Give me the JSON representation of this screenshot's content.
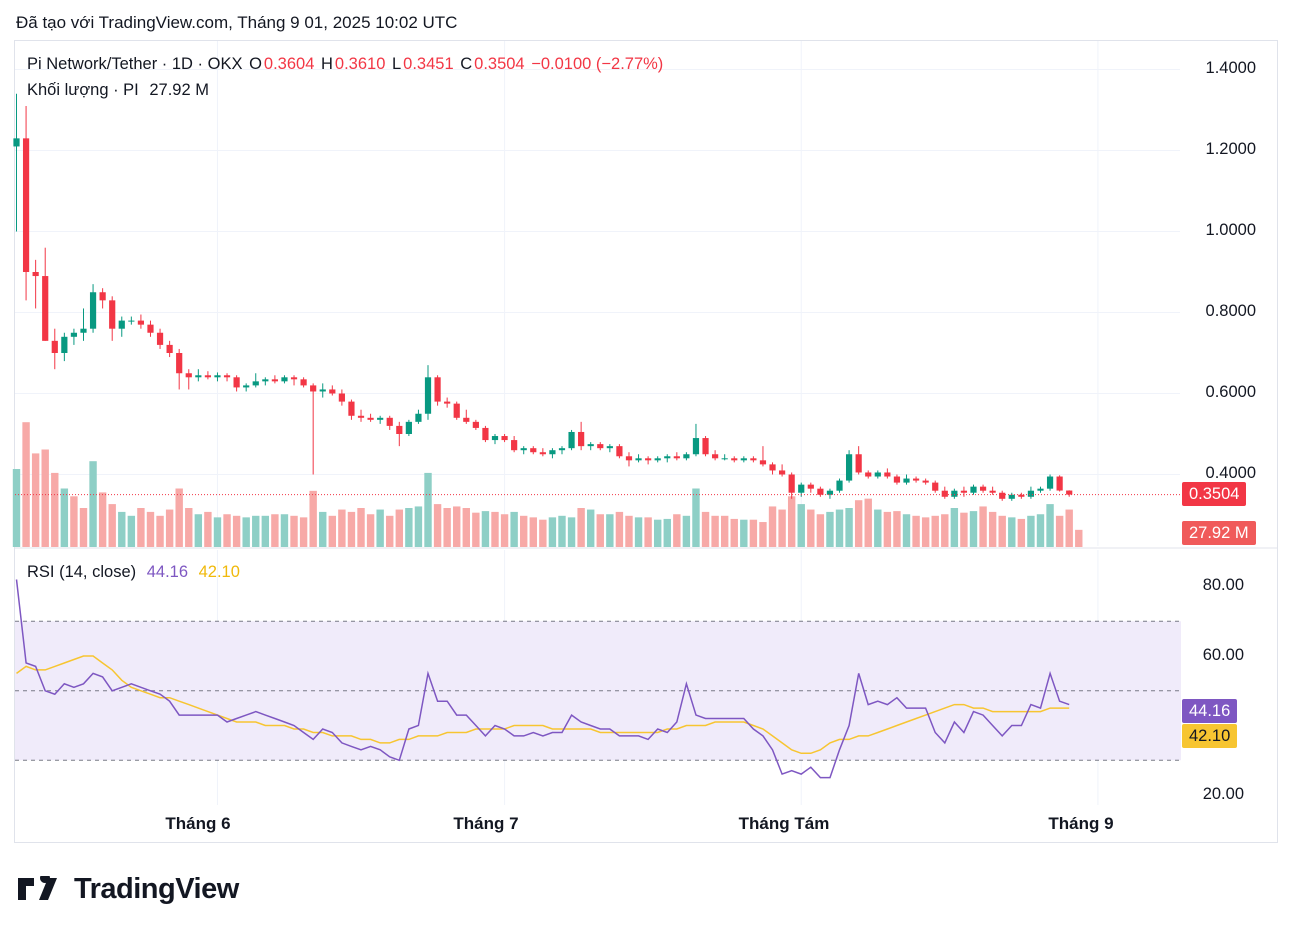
{
  "header": {
    "created_text": "Đã tạo với TradingView.com, Tháng 9 01, 2025 10:02 UTC"
  },
  "legend": {
    "symbol": "Pi Network/Tether · 1D · OKX",
    "o_label": "O",
    "o_value": "0.3604",
    "h_label": "H",
    "h_value": "0.3610",
    "l_label": "L",
    "l_value": "0.3451",
    "c_label": "C",
    "c_value": "0.3504",
    "change": "−0.0100 (−2.77%)",
    "volume_label": "Khối lượng · PI",
    "volume_value": "27.92 M"
  },
  "rsi_legend": {
    "label": "RSI (14, close)",
    "rsi_value": "44.16",
    "ma_value": "42.10"
  },
  "price_axis": [
    "1.4000",
    "1.2000",
    "1.0000",
    "0.8000",
    "0.6000",
    "0.4000"
  ],
  "rsi_axis": [
    "80.00",
    "60.00",
    "20.00"
  ],
  "x_axis": [
    {
      "label": "Tháng 6",
      "idx": 21
    },
    {
      "label": "Tháng 7",
      "idx": 51
    },
    {
      "label": "Tháng Tám",
      "idx": 82
    },
    {
      "label": "Tháng 9",
      "idx": 113
    }
  ],
  "badges": {
    "price": "0.3504",
    "volume": "27.92 M",
    "rsi": "44.16",
    "rsi_ma": "42.10"
  },
  "brand": {
    "name": "TradingView"
  },
  "colors": {
    "up": "#089981",
    "down": "#f23645",
    "vol_up": "#8ecfc6",
    "vol_down": "#f7a9a7",
    "rsi": "#7e57c2",
    "rsi_ma": "#f7c531",
    "rsi_band": "#f0ebfa"
  },
  "chart_data": {
    "type": "candlestick",
    "price_range": [
      0.28,
      1.45
    ],
    "rsi_range": [
      17,
      86
    ],
    "rsi_bands": [
      30,
      50,
      70
    ],
    "candles": [
      {
        "o": 1.21,
        "h": 1.34,
        "l": 1.0,
        "c": 1.23
      },
      {
        "o": 1.23,
        "h": 1.31,
        "l": 0.83,
        "c": 0.9
      },
      {
        "o": 0.9,
        "h": 0.93,
        "l": 0.81,
        "c": 0.89
      },
      {
        "o": 0.89,
        "h": 0.96,
        "l": 0.73,
        "c": 0.73
      },
      {
        "o": 0.73,
        "h": 0.76,
        "l": 0.66,
        "c": 0.7
      },
      {
        "o": 0.7,
        "h": 0.75,
        "l": 0.68,
        "c": 0.74
      },
      {
        "o": 0.74,
        "h": 0.76,
        "l": 0.72,
        "c": 0.75
      },
      {
        "o": 0.75,
        "h": 0.81,
        "l": 0.73,
        "c": 0.76
      },
      {
        "o": 0.76,
        "h": 0.87,
        "l": 0.75,
        "c": 0.85
      },
      {
        "o": 0.85,
        "h": 0.86,
        "l": 0.81,
        "c": 0.83
      },
      {
        "o": 0.83,
        "h": 0.84,
        "l": 0.73,
        "c": 0.76
      },
      {
        "o": 0.76,
        "h": 0.79,
        "l": 0.74,
        "c": 0.78
      },
      {
        "o": 0.78,
        "h": 0.79,
        "l": 0.77,
        "c": 0.78
      },
      {
        "o": 0.78,
        "h": 0.795,
        "l": 0.76,
        "c": 0.77
      },
      {
        "o": 0.77,
        "h": 0.78,
        "l": 0.74,
        "c": 0.75
      },
      {
        "o": 0.75,
        "h": 0.76,
        "l": 0.71,
        "c": 0.72
      },
      {
        "o": 0.72,
        "h": 0.73,
        "l": 0.69,
        "c": 0.7
      },
      {
        "o": 0.7,
        "h": 0.71,
        "l": 0.61,
        "c": 0.65
      },
      {
        "o": 0.65,
        "h": 0.66,
        "l": 0.61,
        "c": 0.64
      },
      {
        "o": 0.64,
        "h": 0.66,
        "l": 0.63,
        "c": 0.645
      },
      {
        "o": 0.645,
        "h": 0.655,
        "l": 0.635,
        "c": 0.64
      },
      {
        "o": 0.64,
        "h": 0.652,
        "l": 0.63,
        "c": 0.645
      },
      {
        "o": 0.645,
        "h": 0.65,
        "l": 0.63,
        "c": 0.64
      },
      {
        "o": 0.64,
        "h": 0.645,
        "l": 0.605,
        "c": 0.615
      },
      {
        "o": 0.615,
        "h": 0.625,
        "l": 0.605,
        "c": 0.62
      },
      {
        "o": 0.62,
        "h": 0.65,
        "l": 0.615,
        "c": 0.63
      },
      {
        "o": 0.63,
        "h": 0.64,
        "l": 0.62,
        "c": 0.635
      },
      {
        "o": 0.635,
        "h": 0.645,
        "l": 0.625,
        "c": 0.63
      },
      {
        "o": 0.63,
        "h": 0.645,
        "l": 0.625,
        "c": 0.64
      },
      {
        "o": 0.64,
        "h": 0.645,
        "l": 0.62,
        "c": 0.635
      },
      {
        "o": 0.635,
        "h": 0.64,
        "l": 0.615,
        "c": 0.62
      },
      {
        "o": 0.62,
        "h": 0.625,
        "l": 0.4,
        "c": 0.605
      },
      {
        "o": 0.605,
        "h": 0.625,
        "l": 0.59,
        "c": 0.61
      },
      {
        "o": 0.61,
        "h": 0.62,
        "l": 0.595,
        "c": 0.6
      },
      {
        "o": 0.6,
        "h": 0.61,
        "l": 0.57,
        "c": 0.58
      },
      {
        "o": 0.58,
        "h": 0.585,
        "l": 0.535,
        "c": 0.545
      },
      {
        "o": 0.545,
        "h": 0.56,
        "l": 0.53,
        "c": 0.54
      },
      {
        "o": 0.54,
        "h": 0.55,
        "l": 0.53,
        "c": 0.535
      },
      {
        "o": 0.535,
        "h": 0.545,
        "l": 0.525,
        "c": 0.54
      },
      {
        "o": 0.54,
        "h": 0.545,
        "l": 0.51,
        "c": 0.52
      },
      {
        "o": 0.52,
        "h": 0.53,
        "l": 0.47,
        "c": 0.5
      },
      {
        "o": 0.5,
        "h": 0.535,
        "l": 0.495,
        "c": 0.53
      },
      {
        "o": 0.53,
        "h": 0.56,
        "l": 0.525,
        "c": 0.55
      },
      {
        "o": 0.55,
        "h": 0.67,
        "l": 0.535,
        "c": 0.64
      },
      {
        "o": 0.64,
        "h": 0.645,
        "l": 0.57,
        "c": 0.58
      },
      {
        "o": 0.58,
        "h": 0.59,
        "l": 0.565,
        "c": 0.575
      },
      {
        "o": 0.575,
        "h": 0.58,
        "l": 0.535,
        "c": 0.54
      },
      {
        "o": 0.54,
        "h": 0.56,
        "l": 0.525,
        "c": 0.53
      },
      {
        "o": 0.53,
        "h": 0.535,
        "l": 0.51,
        "c": 0.515
      },
      {
        "o": 0.515,
        "h": 0.52,
        "l": 0.48,
        "c": 0.485
      },
      {
        "o": 0.485,
        "h": 0.5,
        "l": 0.475,
        "c": 0.495
      },
      {
        "o": 0.495,
        "h": 0.5,
        "l": 0.48,
        "c": 0.485
      },
      {
        "o": 0.485,
        "h": 0.495,
        "l": 0.455,
        "c": 0.46
      },
      {
        "o": 0.46,
        "h": 0.47,
        "l": 0.45,
        "c": 0.465
      },
      {
        "o": 0.465,
        "h": 0.47,
        "l": 0.45,
        "c": 0.455
      },
      {
        "o": 0.455,
        "h": 0.465,
        "l": 0.445,
        "c": 0.45
      },
      {
        "o": 0.45,
        "h": 0.465,
        "l": 0.44,
        "c": 0.46
      },
      {
        "o": 0.46,
        "h": 0.47,
        "l": 0.45,
        "c": 0.465
      },
      {
        "o": 0.465,
        "h": 0.51,
        "l": 0.46,
        "c": 0.505
      },
      {
        "o": 0.505,
        "h": 0.53,
        "l": 0.46,
        "c": 0.47
      },
      {
        "o": 0.47,
        "h": 0.48,
        "l": 0.46,
        "c": 0.475
      },
      {
        "o": 0.475,
        "h": 0.48,
        "l": 0.46,
        "c": 0.465
      },
      {
        "o": 0.465,
        "h": 0.475,
        "l": 0.455,
        "c": 0.47
      },
      {
        "o": 0.47,
        "h": 0.475,
        "l": 0.44,
        "c": 0.445
      },
      {
        "o": 0.445,
        "h": 0.455,
        "l": 0.42,
        "c": 0.435
      },
      {
        "o": 0.435,
        "h": 0.45,
        "l": 0.43,
        "c": 0.44
      },
      {
        "o": 0.44,
        "h": 0.445,
        "l": 0.425,
        "c": 0.435
      },
      {
        "o": 0.435,
        "h": 0.445,
        "l": 0.43,
        "c": 0.44
      },
      {
        "o": 0.44,
        "h": 0.45,
        "l": 0.43,
        "c": 0.445
      },
      {
        "o": 0.445,
        "h": 0.455,
        "l": 0.435,
        "c": 0.44
      },
      {
        "o": 0.44,
        "h": 0.455,
        "l": 0.435,
        "c": 0.45
      },
      {
        "o": 0.45,
        "h": 0.525,
        "l": 0.445,
        "c": 0.49
      },
      {
        "o": 0.49,
        "h": 0.495,
        "l": 0.445,
        "c": 0.45
      },
      {
        "o": 0.45,
        "h": 0.46,
        "l": 0.435,
        "c": 0.44
      },
      {
        "o": 0.44,
        "h": 0.45,
        "l": 0.435,
        "c": 0.44
      },
      {
        "o": 0.44,
        "h": 0.445,
        "l": 0.43,
        "c": 0.435
      },
      {
        "o": 0.435,
        "h": 0.445,
        "l": 0.43,
        "c": 0.44
      },
      {
        "o": 0.44,
        "h": 0.445,
        "l": 0.43,
        "c": 0.435
      },
      {
        "o": 0.435,
        "h": 0.47,
        "l": 0.42,
        "c": 0.425
      },
      {
        "o": 0.425,
        "h": 0.43,
        "l": 0.4,
        "c": 0.41
      },
      {
        "o": 0.41,
        "h": 0.425,
        "l": 0.395,
        "c": 0.4
      },
      {
        "o": 0.4,
        "h": 0.405,
        "l": 0.34,
        "c": 0.355
      },
      {
        "o": 0.355,
        "h": 0.38,
        "l": 0.345,
        "c": 0.375
      },
      {
        "o": 0.375,
        "h": 0.38,
        "l": 0.355,
        "c": 0.365
      },
      {
        "o": 0.365,
        "h": 0.37,
        "l": 0.345,
        "c": 0.35
      },
      {
        "o": 0.35,
        "h": 0.365,
        "l": 0.34,
        "c": 0.36
      },
      {
        "o": 0.36,
        "h": 0.39,
        "l": 0.355,
        "c": 0.385
      },
      {
        "o": 0.385,
        "h": 0.46,
        "l": 0.38,
        "c": 0.45
      },
      {
        "o": 0.45,
        "h": 0.47,
        "l": 0.4,
        "c": 0.405
      },
      {
        "o": 0.405,
        "h": 0.41,
        "l": 0.39,
        "c": 0.395
      },
      {
        "o": 0.395,
        "h": 0.41,
        "l": 0.39,
        "c": 0.405
      },
      {
        "o": 0.405,
        "h": 0.415,
        "l": 0.39,
        "c": 0.395
      },
      {
        "o": 0.395,
        "h": 0.4,
        "l": 0.375,
        "c": 0.38
      },
      {
        "o": 0.38,
        "h": 0.4,
        "l": 0.375,
        "c": 0.39
      },
      {
        "o": 0.39,
        "h": 0.395,
        "l": 0.38,
        "c": 0.385
      },
      {
        "o": 0.385,
        "h": 0.39,
        "l": 0.375,
        "c": 0.38
      },
      {
        "o": 0.38,
        "h": 0.385,
        "l": 0.355,
        "c": 0.36
      },
      {
        "o": 0.36,
        "h": 0.37,
        "l": 0.34,
        "c": 0.345
      },
      {
        "o": 0.345,
        "h": 0.365,
        "l": 0.34,
        "c": 0.36
      },
      {
        "o": 0.36,
        "h": 0.37,
        "l": 0.345,
        "c": 0.355
      },
      {
        "o": 0.355,
        "h": 0.375,
        "l": 0.35,
        "c": 0.37
      },
      {
        "o": 0.37,
        "h": 0.375,
        "l": 0.355,
        "c": 0.36
      },
      {
        "o": 0.36,
        "h": 0.37,
        "l": 0.35,
        "c": 0.355
      },
      {
        "o": 0.355,
        "h": 0.36,
        "l": 0.335,
        "c": 0.34
      },
      {
        "o": 0.34,
        "h": 0.355,
        "l": 0.335,
        "c": 0.35
      },
      {
        "o": 0.35,
        "h": 0.355,
        "l": 0.34,
        "c": 0.345
      },
      {
        "o": 0.345,
        "h": 0.37,
        "l": 0.34,
        "c": 0.36
      },
      {
        "o": 0.36,
        "h": 0.37,
        "l": 0.355,
        "c": 0.365
      },
      {
        "o": 0.365,
        "h": 0.4,
        "l": 0.36,
        "c": 0.395
      },
      {
        "o": 0.395,
        "h": 0.398,
        "l": 0.358,
        "c": 0.3604
      },
      {
        "o": 0.3604,
        "h": 0.361,
        "l": 0.3451,
        "c": 0.3504
      }
    ],
    "volume": [
      100,
      160,
      120,
      125,
      95,
      75,
      65,
      50,
      110,
      70,
      55,
      45,
      40,
      50,
      45,
      40,
      48,
      75,
      50,
      42,
      45,
      38,
      42,
      40,
      38,
      40,
      40,
      42,
      42,
      40,
      38,
      72,
      45,
      40,
      48,
      45,
      50,
      42,
      48,
      40,
      48,
      50,
      52,
      95,
      55,
      50,
      52,
      50,
      44,
      46,
      45,
      42,
      45,
      40,
      38,
      35,
      38,
      40,
      38,
      50,
      48,
      42,
      42,
      45,
      40,
      38,
      38,
      35,
      36,
      42,
      40,
      75,
      45,
      40,
      40,
      36,
      35,
      35,
      32,
      52,
      48,
      65,
      55,
      48,
      42,
      45,
      48,
      50,
      60,
      62,
      48,
      45,
      46,
      42,
      40,
      38,
      40,
      42,
      50,
      44,
      46,
      52,
      45,
      40,
      38,
      36,
      40,
      42,
      55,
      40,
      48,
      22
    ],
    "volume_up": [
      1,
      0,
      0,
      0,
      0,
      1,
      0,
      0,
      1,
      0,
      0,
      1,
      1,
      0,
      0,
      0,
      0,
      0,
      0,
      1,
      0,
      1,
      0,
      0,
      1,
      1,
      1,
      0,
      1,
      0,
      0,
      0,
      1,
      0,
      0,
      0,
      0,
      0,
      1,
      0,
      0,
      1,
      1,
      1,
      0,
      0,
      0,
      0,
      0,
      1,
      0,
      0,
      1,
      0,
      0,
      0,
      1,
      1,
      1,
      0,
      1,
      0,
      1,
      0,
      0,
      1,
      0,
      1,
      1,
      0,
      1,
      1,
      0,
      0,
      0,
      0,
      1,
      0,
      0,
      0,
      0,
      0,
      1,
      0,
      0,
      1,
      1,
      1,
      0,
      0,
      1,
      0,
      0,
      1,
      0,
      0,
      0,
      0,
      1,
      0,
      1,
      0,
      0,
      0,
      1,
      0,
      1,
      1,
      1,
      0
    ],
    "rsi": [
      82,
      58,
      57,
      50,
      49,
      52,
      51,
      52,
      55,
      54,
      50,
      51,
      52,
      51,
      50,
      49,
      47,
      43,
      43,
      43,
      43,
      43,
      41,
      42,
      43,
      44,
      43,
      42,
      41,
      40,
      38,
      36,
      39,
      38,
      35,
      34,
      33,
      34,
      33,
      31,
      30,
      39,
      40,
      55,
      47,
      47,
      43,
      43,
      40,
      37,
      40,
      39,
      37,
      37,
      38,
      37,
      38,
      38,
      43,
      41,
      40,
      39,
      39,
      37,
      37,
      37,
      36,
      39,
      38,
      41,
      52,
      43,
      42,
      42,
      42,
      42,
      42,
      39,
      37,
      33,
      26,
      27,
      26,
      28,
      25,
      25,
      33,
      40,
      55,
      46,
      47,
      46,
      48,
      45,
      45,
      45,
      38,
      35,
      41,
      38,
      44,
      43,
      40,
      37,
      40,
      40,
      46,
      45,
      55,
      47,
      46
    ],
    "rsi_ma": [
      55,
      57,
      56,
      56,
      57,
      58,
      59,
      60,
      60,
      58,
      56,
      53,
      51,
      50,
      49,
      48,
      48,
      47,
      46,
      45,
      44,
      43,
      42,
      41,
      41,
      41,
      40,
      40,
      40,
      39,
      39,
      38,
      38,
      37,
      37,
      37,
      36,
      36,
      35,
      35,
      36,
      36,
      37,
      37,
      37,
      38,
      38,
      38,
      39,
      39,
      39,
      39,
      40,
      40,
      40,
      40,
      39,
      39,
      39,
      39,
      39,
      38,
      38,
      38,
      38,
      38,
      38,
      38,
      39,
      39,
      40,
      40,
      40,
      41,
      41,
      41,
      41,
      40,
      39,
      37,
      35,
      33,
      32,
      32,
      33,
      35,
      36,
      36,
      37,
      37,
      38,
      39,
      40,
      41,
      42,
      43,
      44,
      45,
      46,
      46,
      45,
      45,
      44,
      44,
      44,
      44,
      44,
      44,
      45,
      45,
      45
    ]
  }
}
